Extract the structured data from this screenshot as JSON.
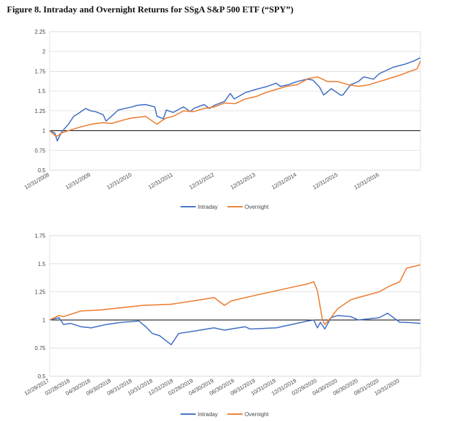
{
  "title": "Figure 8. Intraday and Overnight Returns for SSgA S&P 500 ETF (“SPY”)",
  "colors": {
    "intraday": "#4472C4",
    "overnight": "#ED7D31"
  },
  "chart_data": [
    {
      "type": "line",
      "title": "",
      "xlabel": "",
      "ylabel": "",
      "ylim": [
        0.5,
        2.25
      ],
      "yticks": [
        "0.5",
        "0.75",
        "1",
        "1.25",
        "1.5",
        "1.75",
        "2",
        "2.25"
      ],
      "xticks": [
        "12/31/2008",
        "12/31/2009",
        "12/31/2010",
        "12/31/2011",
        "12/31/2012",
        "12/31/2013",
        "12/31/2014",
        "12/31/2015",
        "12/31/2016"
      ],
      "xrange": [
        "2008-12-31",
        "2017-12-29"
      ],
      "grid": "horizontal",
      "legend": "bottom",
      "series": [
        {
          "name": "Intraday",
          "color": "#4472C4",
          "x": [
            "2008-12-31",
            "2009-02-15",
            "2009-03-09",
            "2009-04-15",
            "2009-06-15",
            "2009-08-01",
            "2009-09-15",
            "2009-11-15",
            "2009-12-31",
            "2010-02-10",
            "2010-04-20",
            "2010-05-15",
            "2010-07-01",
            "2010-08-31",
            "2010-10-31",
            "2010-12-31",
            "2011-02-15",
            "2011-04-30",
            "2011-07-20",
            "2011-08-10",
            "2011-10-05",
            "2011-10-31",
            "2011-12-31",
            "2012-03-31",
            "2012-05-31",
            "2012-06-30",
            "2012-09-30",
            "2012-11-15",
            "2012-12-31",
            "2013-03-31",
            "2013-05-20",
            "2013-06-24",
            "2013-09-30",
            "2013-12-31",
            "2014-04-15",
            "2014-06-30",
            "2014-08-07",
            "2014-10-15",
            "2014-12-31",
            "2015-03-31",
            "2015-05-20",
            "2015-07-20",
            "2015-08-25",
            "2015-11-01",
            "2016-01-20",
            "2016-02-11",
            "2016-04-20",
            "2016-06-27",
            "2016-08-15",
            "2016-11-08",
            "2016-12-31",
            "2017-03-01",
            "2017-05-01",
            "2017-08-15",
            "2017-10-31",
            "2017-12-29"
          ],
          "y": [
            1.0,
            0.97,
            0.87,
            0.98,
            1.08,
            1.18,
            1.22,
            1.28,
            1.25,
            1.24,
            1.2,
            1.12,
            1.18,
            1.26,
            1.28,
            1.3,
            1.32,
            1.33,
            1.3,
            1.18,
            1.15,
            1.26,
            1.23,
            1.3,
            1.24,
            1.28,
            1.33,
            1.28,
            1.32,
            1.37,
            1.47,
            1.4,
            1.48,
            1.52,
            1.56,
            1.6,
            1.56,
            1.58,
            1.62,
            1.65,
            1.64,
            1.55,
            1.45,
            1.53,
            1.45,
            1.45,
            1.58,
            1.62,
            1.68,
            1.65,
            1.72,
            1.76,
            1.8,
            1.84,
            1.88,
            1.92
          ]
        },
        {
          "name": "Overnight",
          "color": "#ED7D31",
          "x": [
            "2008-12-31",
            "2009-02-15",
            "2009-03-09",
            "2009-04-15",
            "2009-06-15",
            "2009-09-15",
            "2009-12-31",
            "2010-04-15",
            "2010-07-01",
            "2010-10-31",
            "2010-12-31",
            "2011-04-30",
            "2011-08-10",
            "2011-09-15",
            "2011-10-31",
            "2011-12-31",
            "2012-03-31",
            "2012-06-30",
            "2012-09-30",
            "2012-12-31",
            "2013-03-31",
            "2013-06-30",
            "2013-09-30",
            "2013-12-31",
            "2014-03-31",
            "2014-06-30",
            "2014-09-30",
            "2014-12-31",
            "2015-04-15",
            "2015-07-01",
            "2015-09-30",
            "2015-12-31",
            "2016-03-31",
            "2016-06-30",
            "2016-09-30",
            "2016-12-31",
            "2017-03-31",
            "2017-06-30",
            "2017-09-30",
            "2017-11-30",
            "2017-12-29"
          ],
          "y": [
            1.0,
            0.94,
            0.93,
            0.97,
            1.0,
            1.04,
            1.08,
            1.1,
            1.09,
            1.14,
            1.16,
            1.18,
            1.08,
            1.12,
            1.16,
            1.18,
            1.25,
            1.24,
            1.28,
            1.3,
            1.35,
            1.34,
            1.4,
            1.43,
            1.48,
            1.52,
            1.56,
            1.58,
            1.66,
            1.68,
            1.62,
            1.62,
            1.58,
            1.56,
            1.58,
            1.62,
            1.66,
            1.7,
            1.75,
            1.78,
            1.88
          ]
        }
      ]
    },
    {
      "type": "line",
      "title": "",
      "xlabel": "",
      "ylabel": "",
      "ylim": [
        0.5,
        1.75
      ],
      "yticks": [
        "0.5",
        "0.75",
        "1",
        "1.25",
        "1.5",
        "1.75"
      ],
      "xticks": [
        "12/29/2017",
        "02/28/2018",
        "04/30/2018",
        "06/30/2018",
        "08/31/2018",
        "10/31/2018",
        "12/31/2018",
        "02/28/2019",
        "04/30/2019",
        "06/30/2019",
        "08/31/2019",
        "10/31/2019",
        "12/31/2019",
        "02/29/2020",
        "04/30/2020",
        "06/30/2020",
        "08/31/2020",
        "10/31/2020"
      ],
      "xrange": [
        "2017-12-29",
        "2020-12-31"
      ],
      "grid": "horizontal",
      "legend": "bottom",
      "series": [
        {
          "name": "Intraday",
          "color": "#4472C4",
          "x": [
            "2017-12-29",
            "2018-01-26",
            "2018-02-08",
            "2018-03-01",
            "2018-04-01",
            "2018-05-01",
            "2018-06-15",
            "2018-08-01",
            "2018-09-20",
            "2018-10-10",
            "2018-10-29",
            "2018-11-20",
            "2018-12-24",
            "2019-01-15",
            "2019-02-28",
            "2019-04-30",
            "2019-05-31",
            "2019-07-31",
            "2019-08-15",
            "2019-10-31",
            "2019-12-31",
            "2020-01-31",
            "2020-02-19",
            "2020-03-01",
            "2020-03-10",
            "2020-03-23",
            "2020-04-10",
            "2020-04-30",
            "2020-06-08",
            "2020-06-30",
            "2020-08-31",
            "2020-09-25",
            "2020-10-31",
            "2020-11-15",
            "2020-12-31"
          ],
          "y": [
            1.0,
            1.02,
            0.96,
            0.97,
            0.94,
            0.93,
            0.96,
            0.98,
            0.99,
            0.94,
            0.88,
            0.86,
            0.78,
            0.88,
            0.9,
            0.93,
            0.91,
            0.94,
            0.92,
            0.93,
            0.97,
            0.99,
            1.0,
            0.93,
            0.98,
            0.92,
            1.02,
            1.04,
            1.03,
            1.0,
            1.02,
            1.06,
            0.98,
            0.98,
            0.97
          ]
        },
        {
          "name": "Overnight",
          "color": "#ED7D31",
          "x": [
            "2017-12-29",
            "2018-01-26",
            "2018-02-08",
            "2018-03-01",
            "2018-04-01",
            "2018-06-01",
            "2018-08-01",
            "2018-10-01",
            "2018-12-24",
            "2019-02-28",
            "2019-04-30",
            "2019-05-31",
            "2019-06-20",
            "2019-08-31",
            "2019-10-31",
            "2019-12-31",
            "2020-01-31",
            "2020-02-19",
            "2020-03-01",
            "2020-03-16",
            "2020-03-23",
            "2020-04-10",
            "2020-04-30",
            "2020-06-08",
            "2020-06-30",
            "2020-08-31",
            "2020-09-30",
            "2020-10-31",
            "2020-11-20",
            "2020-12-31"
          ],
          "y": [
            1.0,
            1.04,
            1.03,
            1.05,
            1.08,
            1.09,
            1.11,
            1.13,
            1.14,
            1.17,
            1.2,
            1.13,
            1.17,
            1.22,
            1.26,
            1.3,
            1.32,
            1.34,
            1.26,
            1.0,
            0.96,
            1.02,
            1.1,
            1.18,
            1.2,
            1.25,
            1.3,
            1.34,
            1.46,
            1.49
          ]
        }
      ]
    }
  ]
}
